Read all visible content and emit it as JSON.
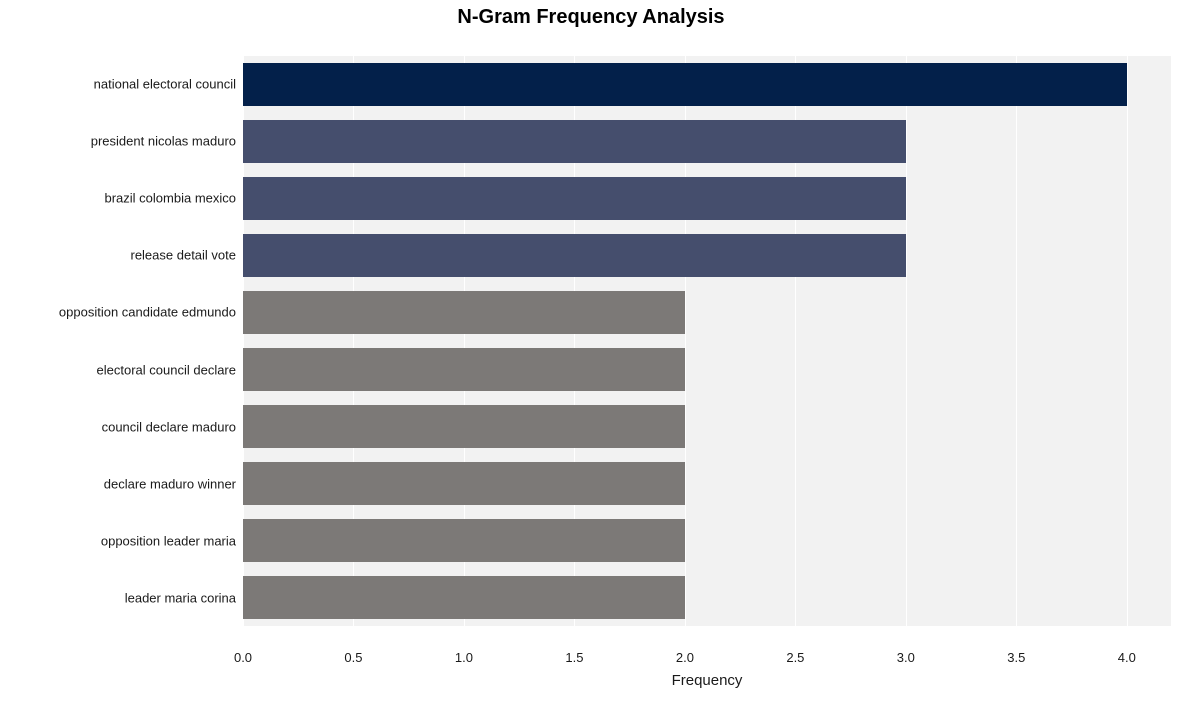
{
  "chart": {
    "type": "bar-horizontal",
    "title": "N-Gram Frequency Analysis",
    "title_fontsize": 20,
    "title_fontweight": "bold",
    "title_color": "#000000",
    "xlabel": "Frequency",
    "xlabel_fontsize": 15,
    "xlabel_color": "#1a1a1a",
    "ytick_fontsize": 13,
    "ytick_color": "#1a1a1a",
    "xtick_fontsize": 13,
    "xtick_color": "#1a1a1a",
    "background_color": "#ffffff",
    "band_color": "#f2f2f2",
    "grid_color": "#ffffff",
    "xlim": [
      0.0,
      4.2
    ],
    "xtick_step": 0.5,
    "xticks": [
      "0.0",
      "0.5",
      "1.0",
      "1.5",
      "2.0",
      "2.5",
      "3.0",
      "3.5",
      "4.0"
    ],
    "bar_height_ratio": 0.78,
    "categories": [
      "national electoral council",
      "president nicolas maduro",
      "brazil colombia mexico",
      "release detail vote",
      "opposition candidate edmundo",
      "electoral council declare",
      "council declare maduro",
      "declare maduro winner",
      "opposition leader maria",
      "leader maria corina"
    ],
    "values": [
      4,
      3,
      3,
      3,
      2,
      2,
      2,
      2,
      2,
      2
    ],
    "bar_colors": [
      "#03204a",
      "#454e6d",
      "#454e6d",
      "#454e6d",
      "#7c7977",
      "#7c7977",
      "#7c7977",
      "#7c7977",
      "#7c7977",
      "#7c7977"
    ]
  }
}
